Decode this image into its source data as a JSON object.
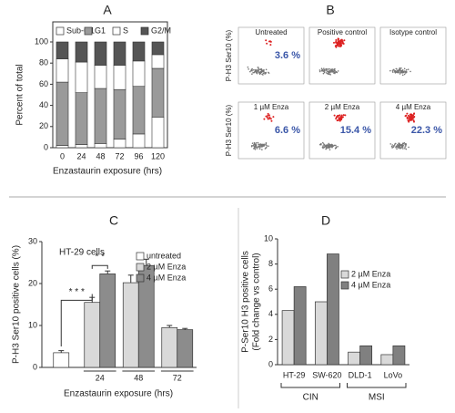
{
  "chart_data": [
    {
      "type": "stacked-bar",
      "panel_label": "A",
      "categories": [
        "0",
        "24",
        "48",
        "72",
        "96",
        "120"
      ],
      "series": [
        {
          "name": "Sub-G1",
          "color": "#ffffff",
          "values": [
            2,
            3,
            4,
            8,
            13,
            29
          ]
        },
        {
          "name": "G1",
          "color": "#9a9a9a",
          "values": [
            60,
            49,
            52,
            47,
            45,
            46
          ]
        },
        {
          "name": "S",
          "color": "#ffffff",
          "values": [
            22,
            29,
            22,
            23,
            24,
            13
          ]
        },
        {
          "name": "G2/M",
          "color": "#555555",
          "values": [
            16,
            19,
            22,
            22,
            18,
            12
          ]
        }
      ],
      "ylim": [
        0,
        100
      ],
      "yticks": [
        0,
        20,
        40,
        60,
        80,
        100
      ],
      "ylabel": "Percent of total",
      "xlabel": "Enzastaurin exposure (hrs)"
    },
    {
      "type": "bar",
      "panel_label": "C",
      "categories": [
        null,
        "24",
        "48",
        "72"
      ],
      "series": [
        {
          "name": "untreated",
          "color": "#ffffff",
          "values": [
            3.5,
            null,
            null,
            null
          ],
          "errors": [
            0.5,
            null,
            null,
            null
          ]
        },
        {
          "name": "2 µM Enza",
          "color": "#d9d9d9",
          "values": [
            null,
            15.5,
            20.2,
            9.5
          ],
          "errors": [
            null,
            1.2,
            1.8,
            0.5
          ]
        },
        {
          "name": "4 µM Enza",
          "color": "#8c8c8c",
          "values": [
            null,
            22.3,
            24.3,
            9.0
          ],
          "errors": [
            null,
            0.7,
            1.5,
            0.3
          ]
        }
      ],
      "ylim": [
        0,
        30
      ],
      "yticks": [
        0,
        10,
        20,
        30
      ],
      "ylabel": "P-H3 Ser10 positive cells (%)",
      "xlabel": "Enzastaurin exposure (hrs)",
      "annotations": [
        "HT-29 cells",
        "* * *",
        "* *"
      ]
    },
    {
      "type": "bar",
      "panel_label": "D",
      "categories": [
        "HT-29",
        "SW-620",
        "DLD-1",
        "LoVo"
      ],
      "series": [
        {
          "name": "2 µM Enza",
          "color": "#d9d9d9",
          "values": [
            4.3,
            5.0,
            1.0,
            0.8
          ]
        },
        {
          "name": "4 µM Enza",
          "color": "#808080",
          "values": [
            6.2,
            8.8,
            1.5,
            1.5
          ]
        }
      ],
      "ylim": [
        0,
        10
      ],
      "yticks": [
        0,
        2,
        4,
        6,
        8,
        10
      ],
      "ylabel": [
        "P-Ser10 H3 positive cells",
        "(Fold change vs control)"
      ],
      "groups": [
        "CIN",
        "MSI"
      ]
    }
  ],
  "panel_b": {
    "panel_label": "B",
    "row_ylabel": [
      "P-H3 Ser10 (%)",
      "P-H3 Ser10 (%)"
    ],
    "cells": [
      {
        "label": "Untreated",
        "percent": "3.6 %"
      },
      {
        "label": "Positive control",
        "percent": null
      },
      {
        "label": "Isotype control",
        "percent": null
      },
      {
        "label": "1 µM Enza",
        "percent": "6.6 %"
      },
      {
        "label": "2 µM Enza",
        "percent": "15.4 %"
      },
      {
        "label": "4 µM Enza",
        "percent": "22.3 %"
      }
    ]
  }
}
